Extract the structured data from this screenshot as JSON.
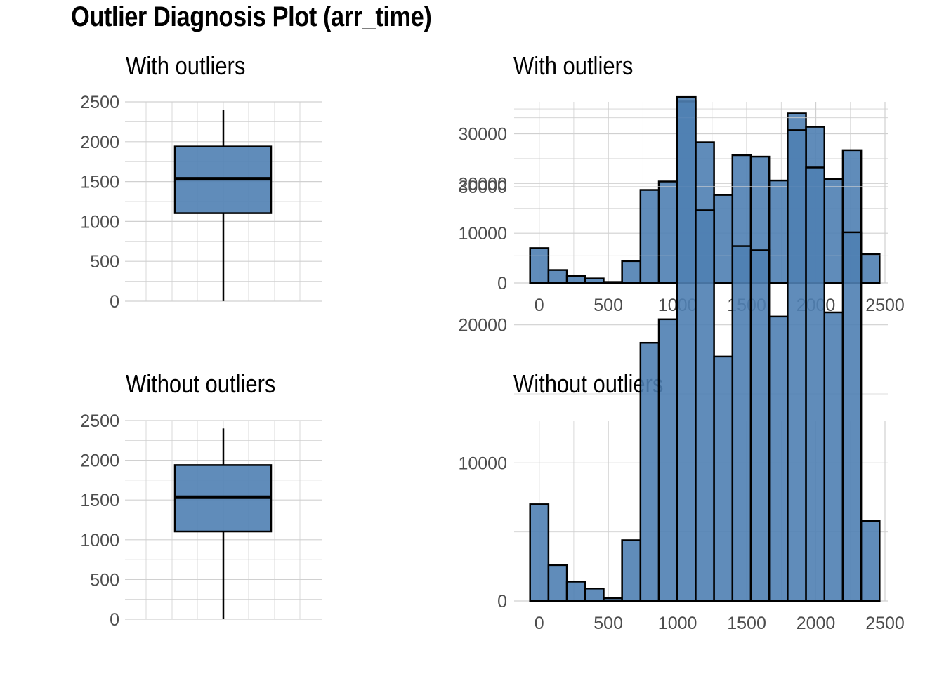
{
  "title": "Outlier Diagnosis Plot (arr_time)",
  "colors": {
    "fill": "#4f7fb3",
    "stroke": "#000000",
    "grid": "#d0d0d0",
    "tick_text": "#4d4d4d"
  },
  "chart_data": [
    {
      "type": "box",
      "title": "With outliers",
      "ylim": [
        0,
        2500
      ],
      "yticks": [
        0,
        500,
        1000,
        1500,
        2000,
        2500
      ],
      "stats": {
        "min": 1,
        "q1": 1104,
        "median": 1535,
        "q3": 1940,
        "max": 2400
      },
      "grid": true
    },
    {
      "type": "bar",
      "title": "With outliers",
      "xlim": [
        -100,
        2500
      ],
      "ylim": [
        0,
        36000
      ],
      "xticks": [
        0,
        500,
        1000,
        1500,
        2000,
        2500
      ],
      "yticks": [
        0,
        10000,
        20000,
        30000
      ],
      "bin_width": 133,
      "bins": [
        -66,
        67,
        200,
        333,
        466,
        599,
        732,
        865,
        998,
        1131,
        1264,
        1397,
        1530,
        1663,
        1796,
        1929,
        2062,
        2195,
        2328
      ],
      "values": [
        7000,
        2600,
        1400,
        900,
        200,
        4400,
        18700,
        20400,
        36500,
        28300,
        17700,
        25700,
        25400,
        20600,
        34100,
        31400,
        20900,
        26700,
        5800
      ],
      "grid": true
    },
    {
      "type": "box",
      "title": "Without outliers",
      "ylim": [
        0,
        2500
      ],
      "yticks": [
        0,
        500,
        1000,
        1500,
        2000,
        2500
      ],
      "stats": {
        "min": 1,
        "q1": 1104,
        "median": 1535,
        "q3": 1940,
        "max": 2400
      },
      "grid": true
    },
    {
      "type": "bar",
      "title": "Without outliers",
      "xlim": [
        -100,
        2500
      ],
      "ylim": [
        0,
        36000
      ],
      "xticks": [
        0,
        500,
        1000,
        1500,
        2000,
        2500
      ],
      "yticks": [
        0,
        10000,
        20000,
        30000
      ],
      "bin_width": 133,
      "bins": [
        -66,
        67,
        200,
        333,
        466,
        599,
        732,
        865,
        998,
        1131,
        1264,
        1397,
        1530,
        1663,
        1796,
        1929,
        2062,
        2195,
        2328
      ],
      "values": [
        7000,
        2600,
        1400,
        900,
        200,
        4400,
        18700,
        20400,
        36500,
        28300,
        17700,
        25700,
        25400,
        20600,
        34100,
        31400,
        20900,
        26700,
        5800
      ],
      "grid": true
    }
  ]
}
